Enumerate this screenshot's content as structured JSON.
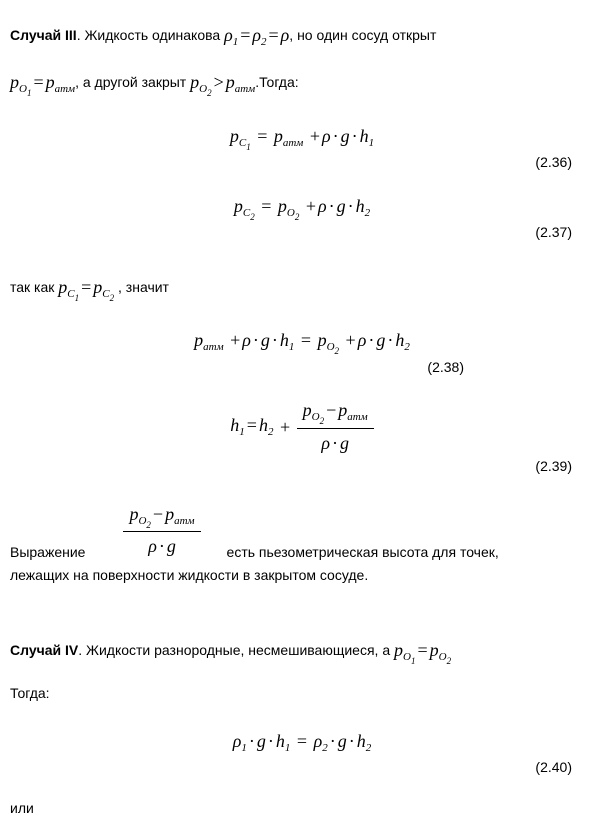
{
  "case3": {
    "label_bold": "Случай III",
    "intro_a": ". Жидкость одинакова ",
    "intro_b": ", но один сосуд открыт ",
    "intro_c": ", а другой закрыт ",
    "intro_end": ".Тогда:",
    "rho_eq": "ρ₁ = ρ₂ = ρ",
    "po1_eq": "p_O1 = p_атм",
    "po2_gt": "p_O2 > p_атм",
    "eq36": "p_C1 = p_атм + ρ · g · h₁",
    "eq36_num": "(2.36)",
    "eq37": "p_C2 = p_O2 + ρ · g · h₂",
    "eq37_num": "(2.37)",
    "since_a": "так как ",
    "pc_eq": "p_C1 = p_C2",
    "since_b": " , значит",
    "eq38": "p_атм + ρ · g · h₁ = p_O2 + ρ · g · h₂",
    "eq38_num": "(2.38)",
    "eq39_lhs": "h₁ = h₂ + ",
    "eq39_frac_num": "p_O2 − p_атм",
    "eq39_frac_den": "ρ · g",
    "eq39_num": "(2.39)",
    "expr_lead": "Выражение ",
    "expr_tail": "есть пьезометрическая высота для точек,",
    "expr_line2": "лежащих на поверхности жидкости в закрытом сосуде."
  },
  "case4": {
    "label_bold": "Случай IV",
    "intro_a": ". Жидкости разнородные, несмешивающиеся, а ",
    "po_eq": "p_O1 = p_O2",
    "then": "Тогда:",
    "eq40": "ρ₁ · g · h₁ = ρ₂ · g · h₂",
    "eq40_num": "(2.40)",
    "or": "или"
  }
}
